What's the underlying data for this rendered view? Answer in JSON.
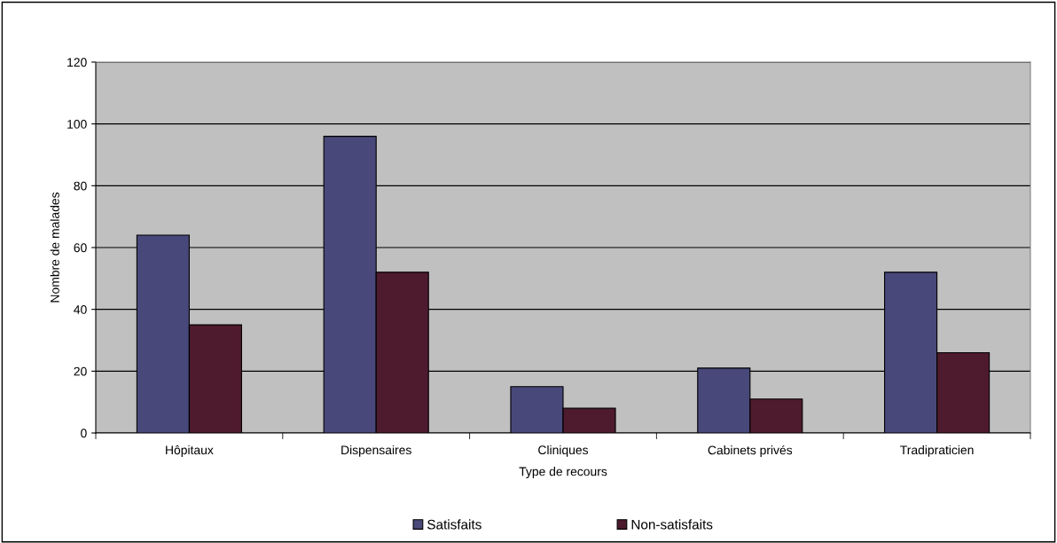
{
  "chart_data": {
    "type": "bar",
    "xlabel": "Type de recours",
    "ylabel": "Nombre de malades",
    "categories": [
      "Hôpitaux",
      "Dispensaires",
      "Cliniques",
      "Cabinets privés",
      "Tradipraticien"
    ],
    "series": [
      {
        "name": "Satisfaits",
        "color": "#48487a",
        "values": [
          64,
          96,
          15,
          21,
          52
        ]
      },
      {
        "name": "Non-satisfaits",
        "color": "#4e1a2e",
        "values": [
          35,
          52,
          8,
          11,
          26
        ]
      }
    ],
    "ylim": [
      0,
      120
    ],
    "yticks": [
      0,
      20,
      40,
      60,
      80,
      100,
      120
    ],
    "grid": "y",
    "legend": "bottom"
  }
}
